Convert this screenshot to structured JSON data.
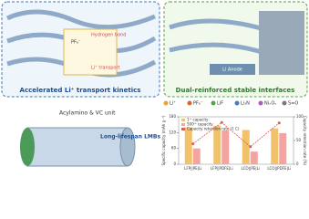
{
  "panels": {
    "left_title": "Accelerated Li⁺ transport kinetics",
    "right_title": "Dual-reinforced stable interfaces",
    "hydrogen_bond": "Hydrogen bond",
    "li_transport": "Li⁺ transport",
    "pf6": "PF₆⁻",
    "li_anode": "Li Anode",
    "unit": "Acylamino & VC unit",
    "battery": "Long-lifespan LMBs"
  },
  "legend": [
    "Li⁺",
    "PF₆⁻",
    "LiF",
    "Li₃N",
    "NiₓOᵧ",
    "S=O"
  ],
  "chart_data": {
    "type": "bar",
    "ylabel": "Specific capacity (mAh g⁻¹)",
    "y2label": "Capacity retention rate (%)",
    "categories": [
      "LFP||PE|Li",
      "LFP||PDFE|Li",
      "LCO||PE|Li",
      "LCO||PDFE|Li"
    ],
    "series": [
      {
        "name": "1ˢᵗ capacity",
        "color": "#f2c26b",
        "values": [
          140,
          146,
          130,
          136
        ]
      },
      {
        "name": "500ᵗʰ capacity",
        "color": "#f4a3a0",
        "values": [
          60,
          128,
          48,
          118
        ]
      },
      {
        "name": "Capacity retention rate (1 C)",
        "color": "#e05a4f",
        "axis": "y2",
        "values": [
          43,
          88,
          37,
          87
        ]
      }
    ],
    "ylim": [
      0,
      180
    ],
    "yticks": [
      0,
      60,
      120,
      180
    ],
    "y2lim": [
      0,
      100
    ],
    "y2ticks": [
      0,
      50,
      100
    ]
  }
}
